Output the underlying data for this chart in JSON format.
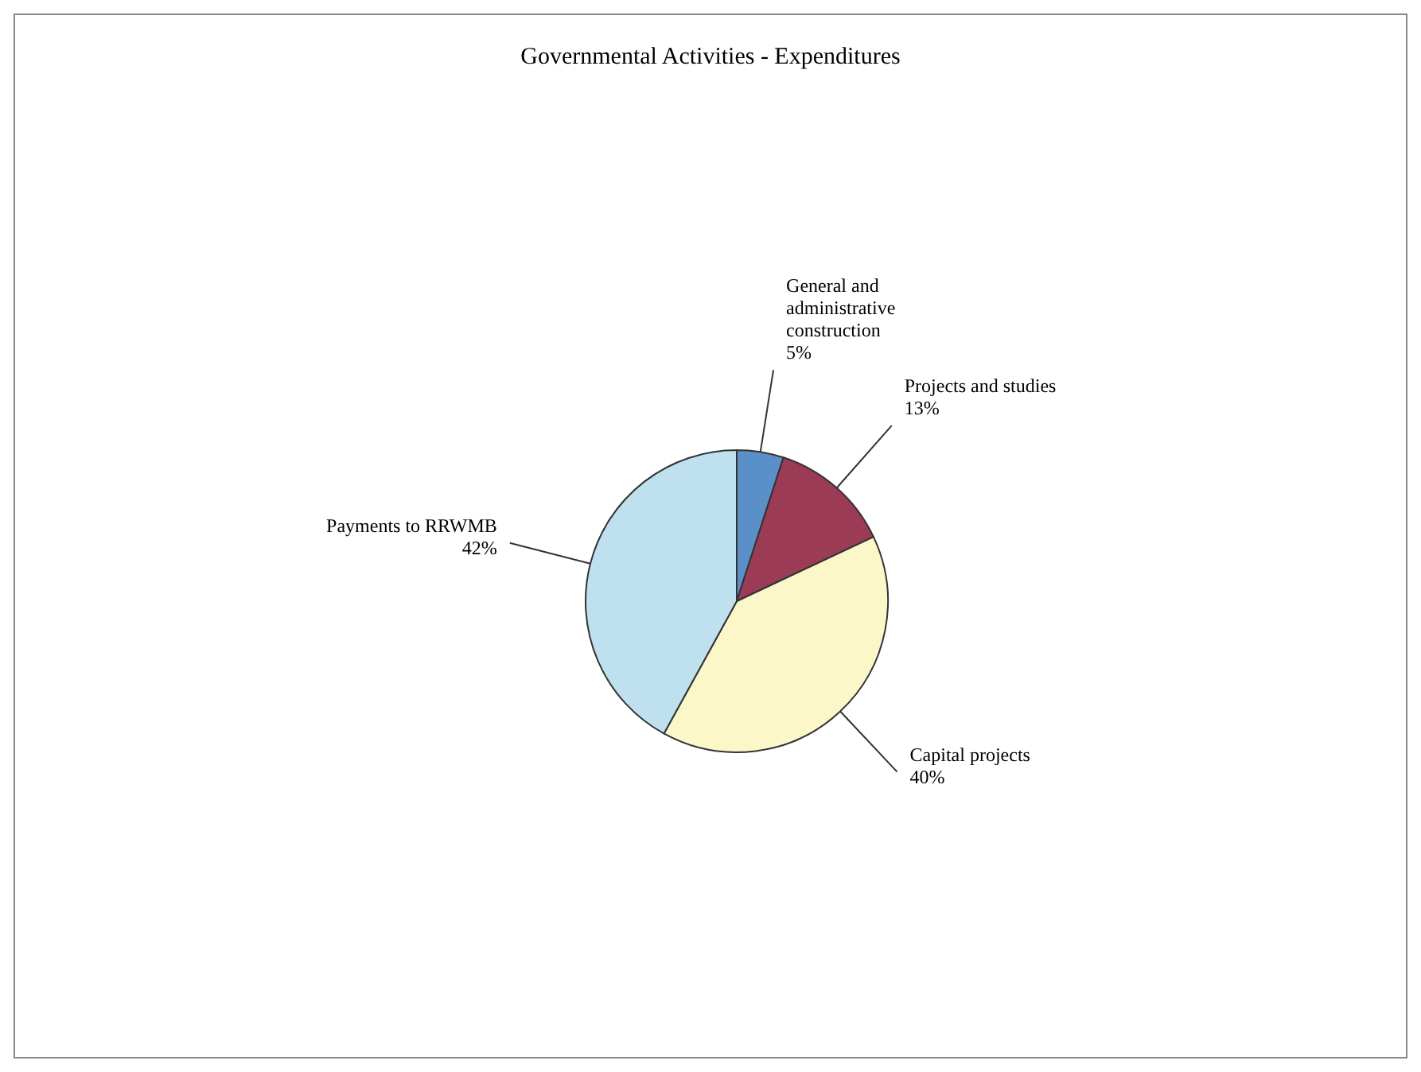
{
  "chart_data": {
    "type": "pie",
    "title": "Governmental Activities - Expenditures",
    "categories": [
      "General and administrative construction",
      "Projects and studies",
      "Capital projects",
      "Payments to RRWMB"
    ],
    "values": [
      5,
      13,
      40,
      42
    ],
    "value_labels": [
      "5%",
      "13%",
      "40%",
      "42%"
    ],
    "colors": [
      "#5b8fc7",
      "#9b3b55",
      "#fbf7c8",
      "#bfe0ee"
    ]
  }
}
